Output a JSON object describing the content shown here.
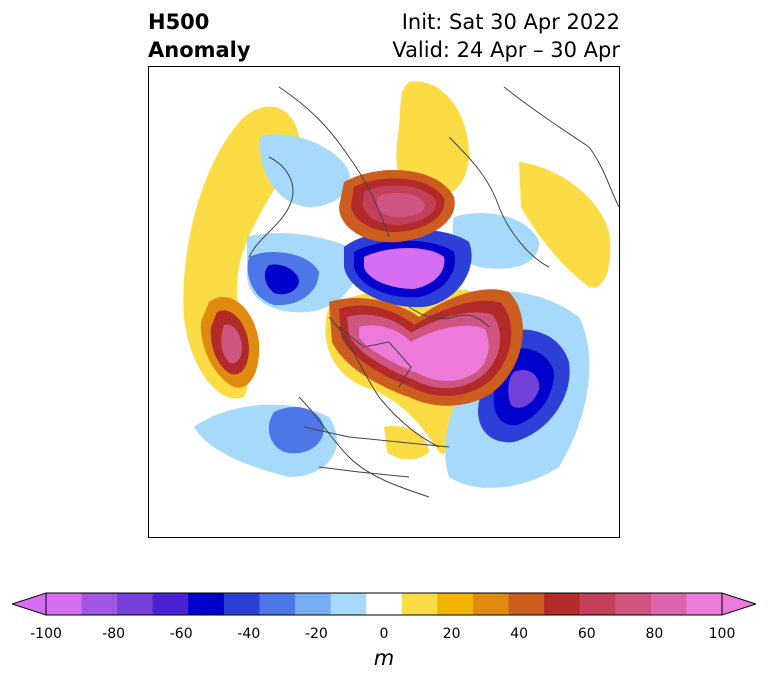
{
  "title": {
    "left_line1": "H500",
    "left_line2": "Anomaly",
    "right_line1": "Init: Sat 30 Apr 2022",
    "right_line2": "Valid: 24 Apr – 30 Apr"
  },
  "colorbar": {
    "unit": "m",
    "ticks": [
      "-100",
      "-80",
      "-60",
      "-40",
      "-20",
      "0",
      "20",
      "40",
      "60",
      "80",
      "100"
    ],
    "tick_values": [
      -100,
      -80,
      -60,
      -40,
      -20,
      0,
      20,
      40,
      60,
      80,
      100
    ],
    "levels": [
      -100,
      -90,
      -80,
      -70,
      -60,
      -50,
      -40,
      -30,
      -20,
      -10,
      10,
      20,
      30,
      40,
      50,
      60,
      70,
      80,
      90,
      100
    ],
    "colors": [
      "#d56ef0",
      "#a157e3",
      "#7341d9",
      "#4a22d4",
      "#0000cc",
      "#2c3fd6",
      "#4f76e6",
      "#77adf1",
      "#a6d9fa",
      "#ffffff",
      "#fbdc45",
      "#f1b400",
      "#e08a10",
      "#cc5d1e",
      "#b22a2a",
      "#c3405a",
      "#cf5580",
      "#dc64ae",
      "#ec7ad8"
    ],
    "extend": "both"
  },
  "map": {
    "projection": "polar stereographic (north)",
    "field": "500 hPa height anomaly",
    "region": "Northern Hemisphere – North America focus"
  }
}
